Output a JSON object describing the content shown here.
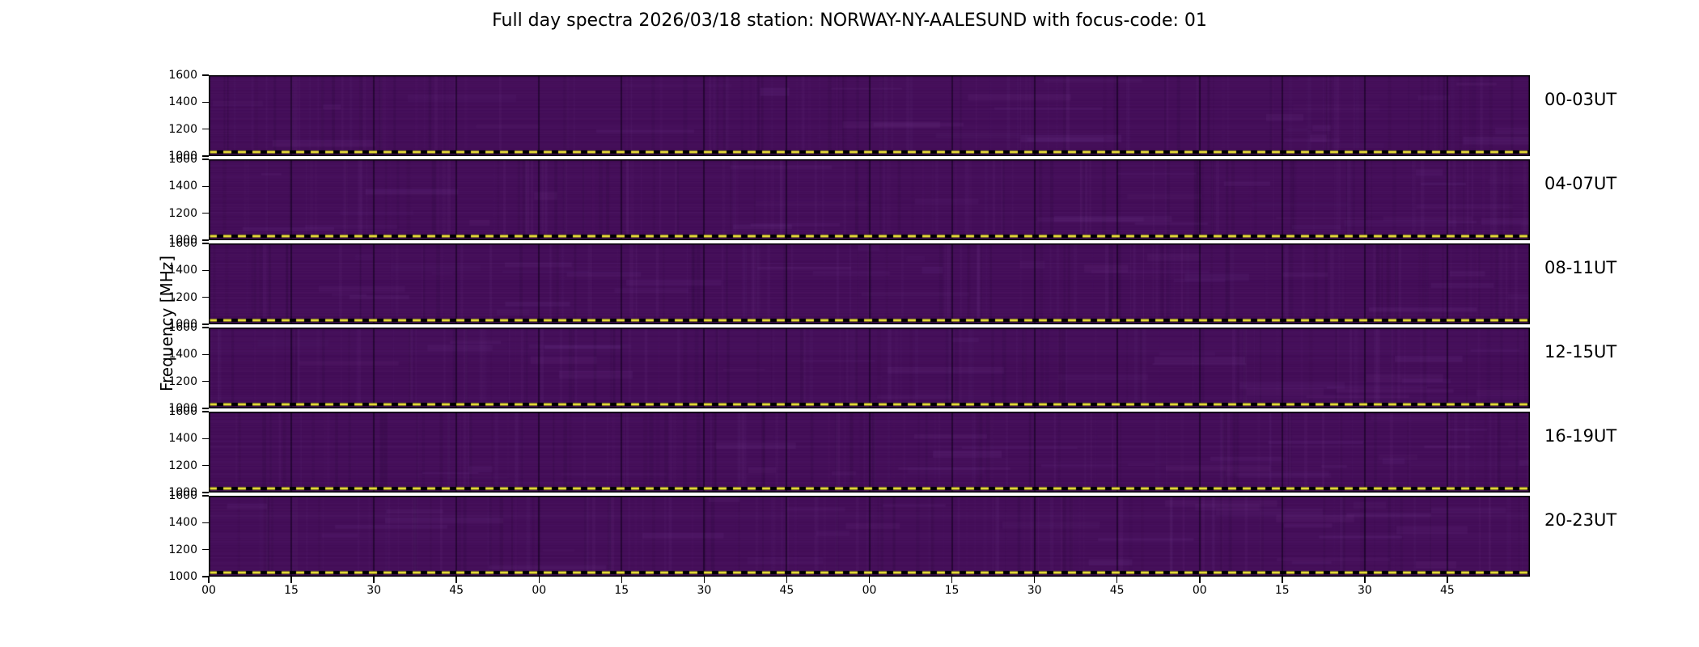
{
  "chart_data": {
    "type": "heatmap",
    "title": "Full day spectra 2026/03/18 station: NORWAY-NY-AALESUND with focus-code: 01",
    "meta": {
      "date": "2026/03/18",
      "station": "NORWAY-NY-AALESUND",
      "focus_code": "01"
    },
    "ylabel": "Frequency [MHz]",
    "ylim": [
      1000,
      1600
    ],
    "y_ticks": [
      1000,
      1200,
      1400,
      1600
    ],
    "x_tick_labels": [
      "00",
      "15",
      "30",
      "45",
      "00",
      "15",
      "30",
      "45",
      "00",
      "15",
      "30",
      "45",
      "00",
      "15",
      "30",
      "45"
    ],
    "panels": [
      {
        "label": "00-03UT"
      },
      {
        "label": "04-07UT"
      },
      {
        "label": "08-11UT"
      },
      {
        "label": "12-15UT"
      },
      {
        "label": "16-19UT"
      },
      {
        "label": "20-23UT"
      }
    ],
    "layout": {
      "panel_count": 6,
      "hours_per_panel": 4,
      "x_tick_interval_minutes": 15,
      "legend": "none",
      "grid": false
    },
    "marker_line": {
      "freq_MHz": 1000,
      "style": "dashed",
      "per_panel": true
    },
    "colors": {
      "background": "#ffffff",
      "axis": "#000000",
      "heatmap_base": "#420c56",
      "heatmap_streak": "#7d46a0",
      "time_grid_line": "#0d0018",
      "marker_dashed_line": "#f0e33c"
    }
  }
}
